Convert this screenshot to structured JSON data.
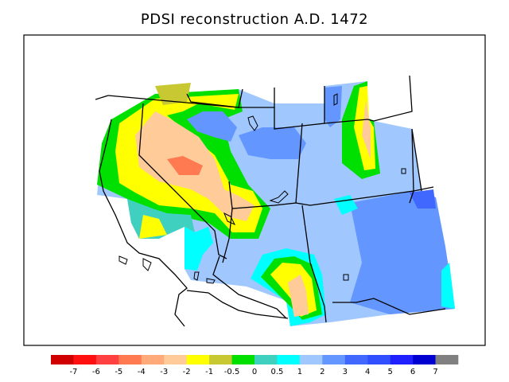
{
  "title": "PDSI reconstruction A.D. 1472",
  "colorbar": {
    "colors": [
      "#d00000",
      "#ff1010",
      "#ff4040",
      "#ff7a50",
      "#ffaa78",
      "#ffcc99",
      "#ffff00",
      "#c8c832",
      "#00e000",
      "#40d0c0",
      "#00ffff",
      "#a0c8ff",
      "#6496ff",
      "#4068ff",
      "#3050ff",
      "#2020ff",
      "#0000d0",
      "#808080"
    ],
    "ticks": [
      "-7",
      "-6",
      "-5",
      "-4",
      "-3",
      "-2",
      "-1",
      "-0.5",
      "0",
      "0.5",
      "1",
      "2",
      "3",
      "4",
      "5",
      "6",
      "7"
    ]
  }
}
